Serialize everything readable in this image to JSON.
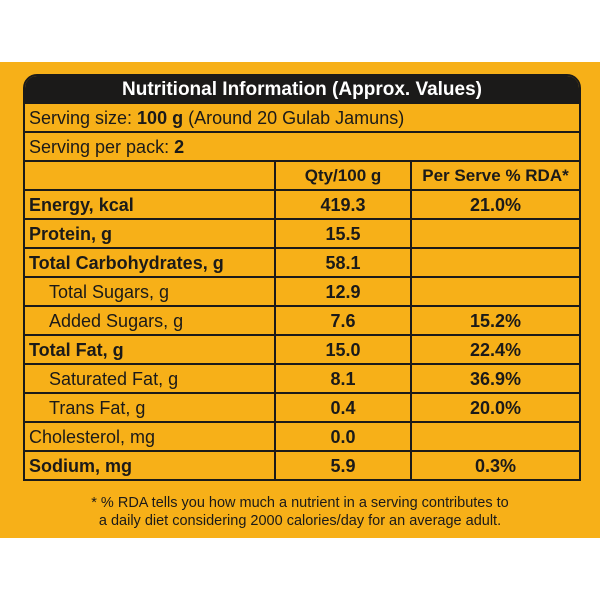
{
  "title": "Nutritional Information (Approx. Values)",
  "serving_size": {
    "label": "Serving size: ",
    "value": "100 g",
    "note": " (Around 20 Gulab Jamuns)"
  },
  "serving_per_pack": {
    "label": "Serving per pack: ",
    "value": "2"
  },
  "columns": {
    "qty": "Qty/100 g",
    "rda": "Per Serve % RDA*"
  },
  "rows": [
    {
      "name": "Energy, kcal",
      "qty": "419.3",
      "rda": "21.0%",
      "bold": true,
      "indent": false
    },
    {
      "name": "Protein, g",
      "qty": "15.5",
      "rda": "",
      "bold": true,
      "indent": false
    },
    {
      "name": "Total Carbohydrates, g",
      "qty": "58.1",
      "rda": "",
      "bold": true,
      "indent": false
    },
    {
      "name": "Total Sugars, g",
      "qty": "12.9",
      "rda": "",
      "bold": false,
      "indent": true
    },
    {
      "name": "Added Sugars, g",
      "qty": "7.6",
      "rda": "15.2%",
      "bold": false,
      "indent": true
    },
    {
      "name": "Total Fat, g",
      "qty": "15.0",
      "rda": "22.4%",
      "bold": true,
      "indent": false
    },
    {
      "name": "Saturated Fat, g",
      "qty": "8.1",
      "rda": "36.9%",
      "bold": false,
      "indent": true
    },
    {
      "name": "Trans Fat, g",
      "qty": "0.4",
      "rda": "20.0%",
      "bold": false,
      "indent": true
    },
    {
      "name": "Cholesterol, mg",
      "qty": "0.0",
      "rda": "",
      "bold": false,
      "indent": false
    },
    {
      "name": "Sodium, mg",
      "qty": "5.9",
      "rda": "0.3%",
      "bold": true,
      "indent": false
    }
  ],
  "footnote": {
    "line1": "* % RDA tells you how much a nutrient in a serving contributes to",
    "line2": "a daily diet considering 2000 calories/day for an average adult."
  },
  "colors": {
    "panel": "#f7b018",
    "ink": "#1b1a19",
    "title_text": "#ffffff"
  }
}
